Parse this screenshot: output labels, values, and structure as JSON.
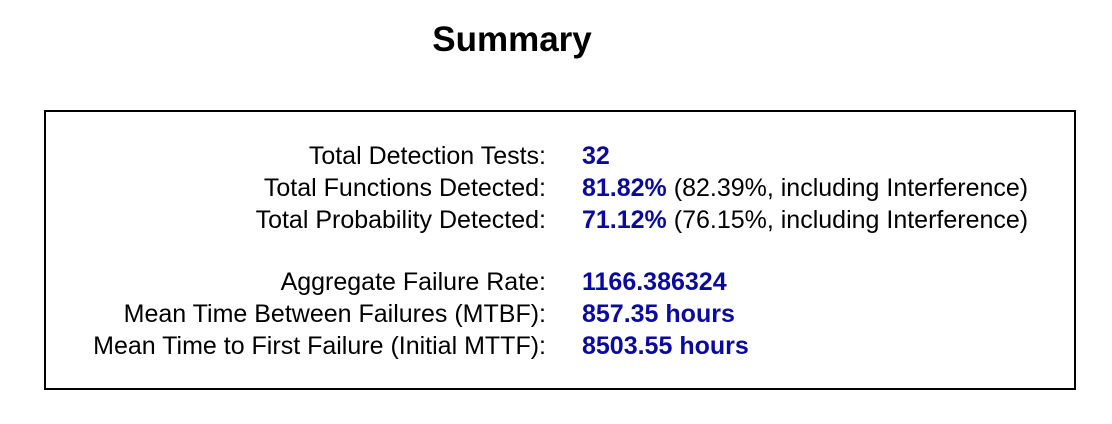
{
  "title": "Summary",
  "accent_color": "#0a0aa0",
  "rows": [
    {
      "label": "Total Detection Tests:",
      "value": "32",
      "note": ""
    },
    {
      "label": "Total Functions Detected:",
      "value": "81.82%",
      "note": " (82.39%, including Interference)"
    },
    {
      "label": "Total Probability Detected:",
      "value": "71.12%",
      "note": " (76.15%, including Interference)"
    },
    {
      "label": "Aggregate Failure Rate:",
      "value": "1166.386324",
      "note": ""
    },
    {
      "label": "Mean Time Between Failures (MTBF):",
      "value": "857.35 hours",
      "note": ""
    },
    {
      "label": "Mean Time to First Failure (Initial MTTF):",
      "value": "8503.55 hours",
      "note": ""
    }
  ]
}
